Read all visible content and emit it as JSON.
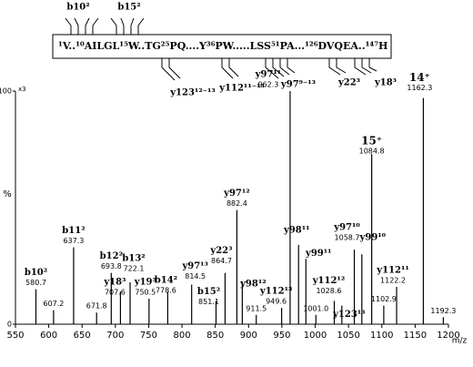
{
  "chart_data": {
    "type": "spectrum",
    "sequence": "¹V..¹⁰AILGL¹⁵W..TG²⁵PQ....Y³⁶PW.....LSS⁵¹PA...¹²⁶DVQEA..¹⁴⁷H",
    "sequence_fragments": [
      "b10²",
      "b15²",
      "y123¹²⁻¹³",
      "y112¹¹⁻¹³",
      "y97⁹⁻¹³",
      "y22³",
      "y18³"
    ],
    "scale_label": "x3",
    "y_label": "%",
    "x_label": "m/z",
    "x": [
      580.7,
      607.2,
      637.3,
      671.8,
      693.8,
      707.6,
      722.1,
      750.5,
      778.6,
      814.5,
      851.1,
      864.7,
      882.4,
      890.5,
      911.5,
      949.6,
      962.3,
      975.0,
      986.0,
      1001.0,
      1028.6,
      1040.0,
      1058.7,
      1070.0,
      1084.8,
      1102.9,
      1122.2,
      1162.3,
      1192.3
    ],
    "values": [
      15,
      6,
      33,
      5,
      22,
      14,
      18,
      11,
      14,
      17,
      10,
      22,
      49,
      18,
      4,
      7,
      100,
      34,
      28,
      4,
      10,
      8,
      32,
      30,
      73,
      8,
      16,
      97,
      3
    ],
    "peak_labels": [
      "b10²",
      null,
      "b11²",
      null,
      "b12²",
      "y18³",
      "b13²",
      "y19³",
      "b14²",
      "y97¹³",
      "b15²",
      "y22³",
      "y97¹²",
      "y98¹²",
      null,
      "y112¹³",
      "y97¹¹",
      "y98¹¹",
      "y99¹¹",
      null,
      "y112¹²",
      "y123¹³",
      "y97¹⁰",
      "y99¹⁰",
      "15⁺",
      null,
      "y112¹¹",
      "14⁺",
      null
    ],
    "mz_labels": [
      "580.7",
      "607.2",
      "637.3",
      "671.8",
      "693.8",
      "707.6",
      "722.1",
      "750.5",
      "778.6",
      "814.5",
      "851.1",
      "864.7",
      "882.4",
      null,
      "911.5",
      "949.6",
      "962.3",
      null,
      null,
      "1001.0",
      "1028.6",
      null,
      "1058.7",
      null,
      "1084.8",
      "1102.9",
      "1122.2",
      "1162.3",
      "1192.3"
    ],
    "color": "#000000",
    "xlim": [
      550,
      1200
    ],
    "xticks": [
      550,
      600,
      650,
      700,
      750,
      800,
      850,
      900,
      950,
      1000,
      1050,
      1100,
      1150,
      1200
    ],
    "ylim": [
      0,
      100
    ],
    "yticks": [
      0,
      100
    ]
  }
}
